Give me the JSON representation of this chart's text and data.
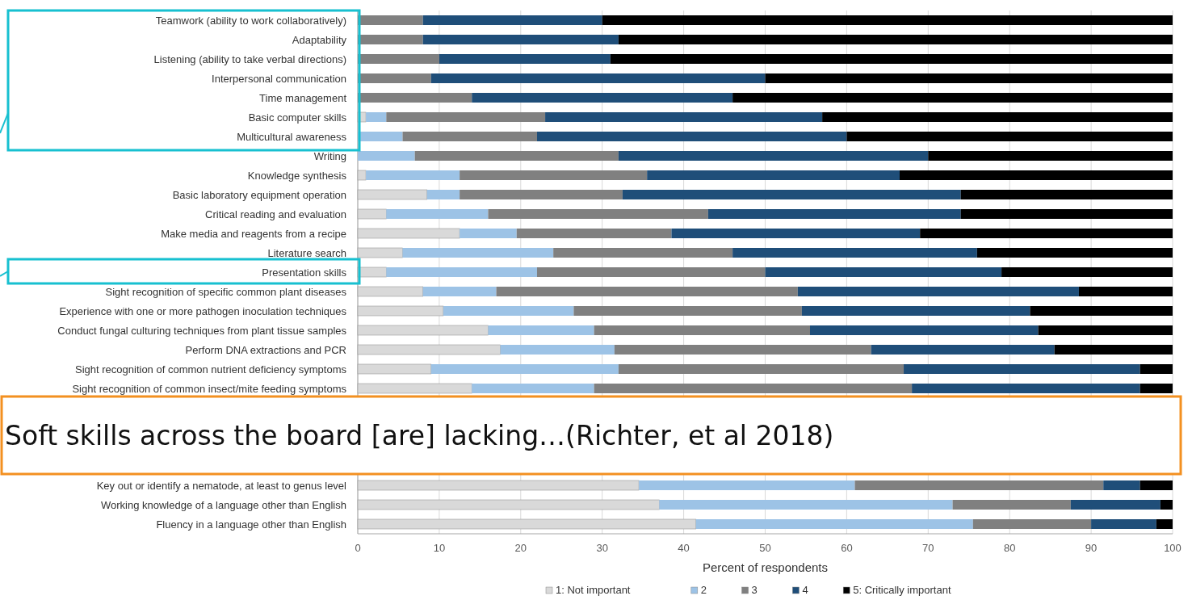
{
  "chart_data": {
    "type": "bar",
    "orientation": "horizontal",
    "stacked": true,
    "categories": [
      "Teamwork (ability to work collaboratively)",
      "Adaptability",
      "Listening (ability to take verbal directions)",
      "Interpersonal communication",
      "Time management",
      "Basic computer skills",
      "Multicultural awareness",
      "Writing",
      "Knowledge synthesis",
      "Basic laboratory equipment operation",
      "Critical reading and evaluation",
      "Make media and reagents from a recipe",
      "Literature search",
      "Presentation skills",
      "Sight recognition of specific common plant diseases",
      "Experience with one or more pathogen inoculation techniques",
      "Conduct fungal culturing techniques from plant tissue samples",
      "Perform DNA extractions and PCR",
      "Sight recognition of common nutrient deficiency symptoms",
      "Sight recognition of common insect/mite feeding symptoms",
      null,
      null,
      null,
      null,
      "Key out or identify a nematode, at least to genus level",
      "Working knowledge of a language other than English",
      "Fluency in a language other than English"
    ],
    "series": [
      {
        "name": "1: Not important",
        "color": "#d9d9d9",
        "values": [
          0,
          0,
          0,
          0,
          0,
          1,
          0,
          0,
          1,
          8.5,
          3.5,
          12.5,
          5.5,
          3.5,
          8,
          10.5,
          16,
          17.5,
          9,
          14,
          null,
          null,
          null,
          null,
          34.5,
          37,
          41.5
        ]
      },
      {
        "name": "2",
        "color": "#9dc3e6",
        "values": [
          0,
          0,
          0,
          0,
          0,
          2.5,
          5.5,
          7,
          11.5,
          4,
          12.5,
          7,
          18.5,
          18.5,
          9,
          16,
          13,
          14,
          23,
          15,
          null,
          null,
          null,
          null,
          26.5,
          36,
          34
        ]
      },
      {
        "name": "3",
        "color": "#808080",
        "values": [
          8,
          8,
          10,
          9,
          14,
          19.5,
          16.5,
          25,
          23,
          20,
          27,
          19,
          22,
          28,
          37,
          28,
          26.5,
          31.5,
          35,
          39,
          null,
          null,
          null,
          null,
          30.5,
          14.5,
          14.5
        ]
      },
      {
        "name": "4",
        "color": "#1f4e79",
        "values": [
          22,
          24,
          21,
          41,
          32,
          34,
          38,
          38,
          31,
          41.5,
          31,
          30.5,
          30,
          29,
          34.5,
          28,
          28,
          22.5,
          29,
          28,
          null,
          null,
          null,
          null,
          4.5,
          11,
          8
        ]
      },
      {
        "name": "5: Critically important",
        "color": "#000000",
        "values": [
          70,
          68,
          69,
          50,
          54,
          43,
          40,
          30,
          33.5,
          26,
          26,
          31,
          24,
          21,
          11.5,
          17.5,
          16.5,
          14.5,
          4,
          4,
          null,
          null,
          null,
          null,
          4,
          1.5,
          2
        ]
      }
    ],
    "xlim": [
      0,
      100
    ],
    "xticks": [
      0,
      10,
      20,
      30,
      40,
      50,
      60,
      70,
      80,
      90,
      100
    ],
    "xlabel": "Percent of respondents",
    "grid": "x",
    "legend": "bottom",
    "annotations": [
      "Soft skills across the board [are] lacking…(Richter, et al 2018)"
    ]
  }
}
